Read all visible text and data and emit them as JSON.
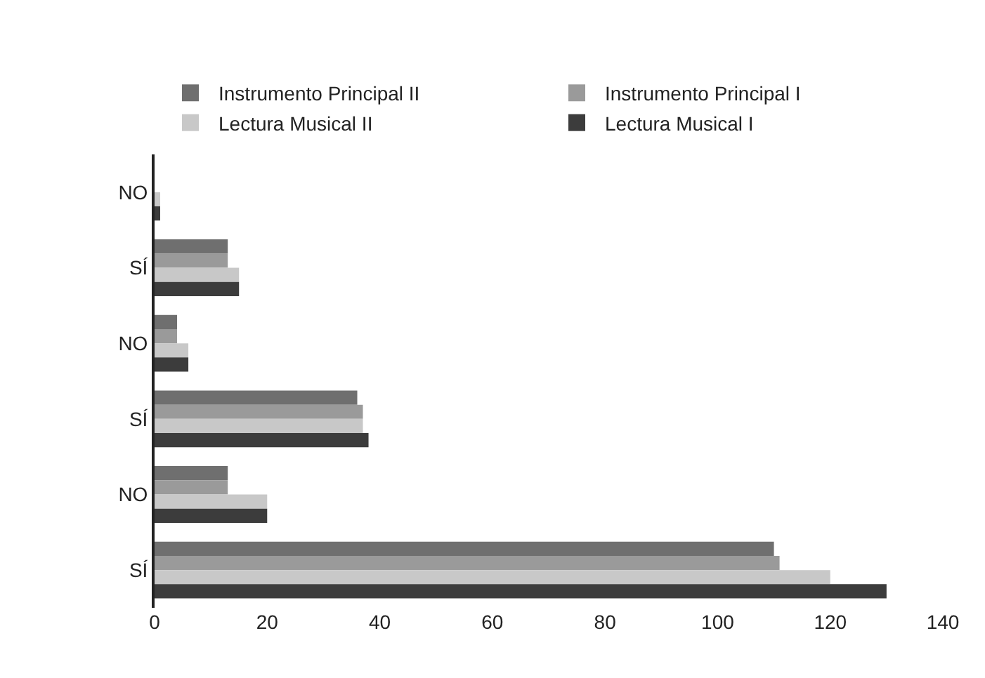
{
  "chart_data": {
    "type": "bar",
    "orientation": "horizontal",
    "categories": [
      "NO",
      "SÍ",
      "NO",
      "SÍ",
      "NO",
      "SÍ"
    ],
    "series": [
      {
        "name": "Instrumento Principal II",
        "color": "#6f6f6f",
        "values": [
          0,
          13,
          4,
          36,
          13,
          110
        ]
      },
      {
        "name": "Instrumento Principal I",
        "color": "#9a9a9a",
        "values": [
          0,
          13,
          4,
          37,
          13,
          111
        ]
      },
      {
        "name": "Lectura Musical II",
        "color": "#c8c8c8",
        "values": [
          1,
          15,
          6,
          37,
          20,
          120
        ]
      },
      {
        "name": "Lectura Musical I",
        "color": "#3c3c3c",
        "values": [
          1,
          15,
          6,
          38,
          20,
          130
        ]
      }
    ],
    "xlim": [
      0,
      140
    ],
    "xticks": [
      0,
      20,
      40,
      60,
      80,
      100,
      120,
      140
    ],
    "grid": false,
    "legend": "top"
  }
}
